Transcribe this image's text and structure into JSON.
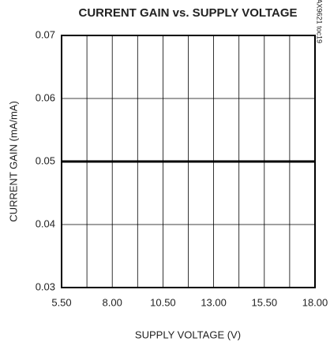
{
  "chart_data": {
    "type": "line",
    "title": "CURRENT GAIN vs. SUPPLY VOLTAGE",
    "x_label": "SUPPLY VOLTAGE (V)",
    "y_label": "CURRENT GAIN (mA/mA)",
    "annotation": "MAX9621 toc19",
    "x": [
      5.5,
      18
    ],
    "series": [
      {
        "name": "CURRENT GAIN",
        "color": "#000000",
        "values": [
          0.05,
          0.05
        ]
      }
    ],
    "xlim": [
      5.5,
      18
    ],
    "xticks": [
      {
        "value": 5.5,
        "label": "5.50"
      },
      {
        "value": 8,
        "label": "8.00"
      },
      {
        "value": 10.5,
        "label": "10.50"
      },
      {
        "value": 13,
        "label": "13.00"
      },
      {
        "value": 15.5,
        "label": "15.50"
      },
      {
        "value": 18,
        "label": "18.00"
      }
    ],
    "xminorticks": [
      6.75,
      9.25,
      11.75,
      14.25,
      16.75
    ],
    "ylim": [
      0.03,
      0.07
    ],
    "yticks": [
      0.03,
      0.04,
      0.05,
      0.06,
      0.07
    ],
    "grid": true
  }
}
